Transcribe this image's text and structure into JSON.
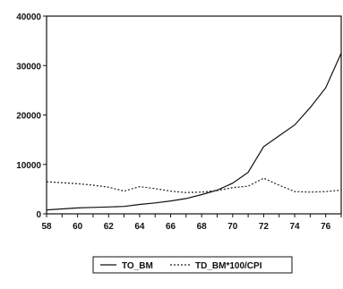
{
  "chart_data": {
    "type": "line",
    "x": [
      58,
      59,
      60,
      61,
      62,
      63,
      64,
      65,
      66,
      67,
      68,
      69,
      70,
      71,
      72,
      73,
      74,
      75,
      76,
      77
    ],
    "xticks": [
      "58",
      "60",
      "62",
      "64",
      "66",
      "68",
      "70",
      "72",
      "74",
      "76"
    ],
    "xlim": [
      58,
      77
    ],
    "ylim": [
      0,
      40000
    ],
    "yticks": [
      "0",
      "10000",
      "20000",
      "30000",
      "40000"
    ],
    "grid": false,
    "legend_placement": "bottom",
    "series": [
      {
        "name": "TO_BM",
        "style": "solid",
        "color": "#111111",
        "values": [
          800,
          1000,
          1200,
          1300,
          1400,
          1500,
          1900,
          2200,
          2600,
          3100,
          3900,
          4800,
          6200,
          8400,
          13600,
          15800,
          18000,
          21500,
          25500,
          32500
        ]
      },
      {
        "name": "TD_BM*100/CPI",
        "style": "dotted",
        "color": "#222222",
        "values": [
          6500,
          6300,
          6100,
          5800,
          5400,
          4600,
          5500,
          5100,
          4600,
          4300,
          4400,
          4700,
          5300,
          5600,
          7200,
          5800,
          4500,
          4400,
          4500,
          4800
        ]
      }
    ]
  },
  "legend": {
    "series1_label": "TO_BM",
    "series2_label": "TD_BM*100/CPI"
  }
}
